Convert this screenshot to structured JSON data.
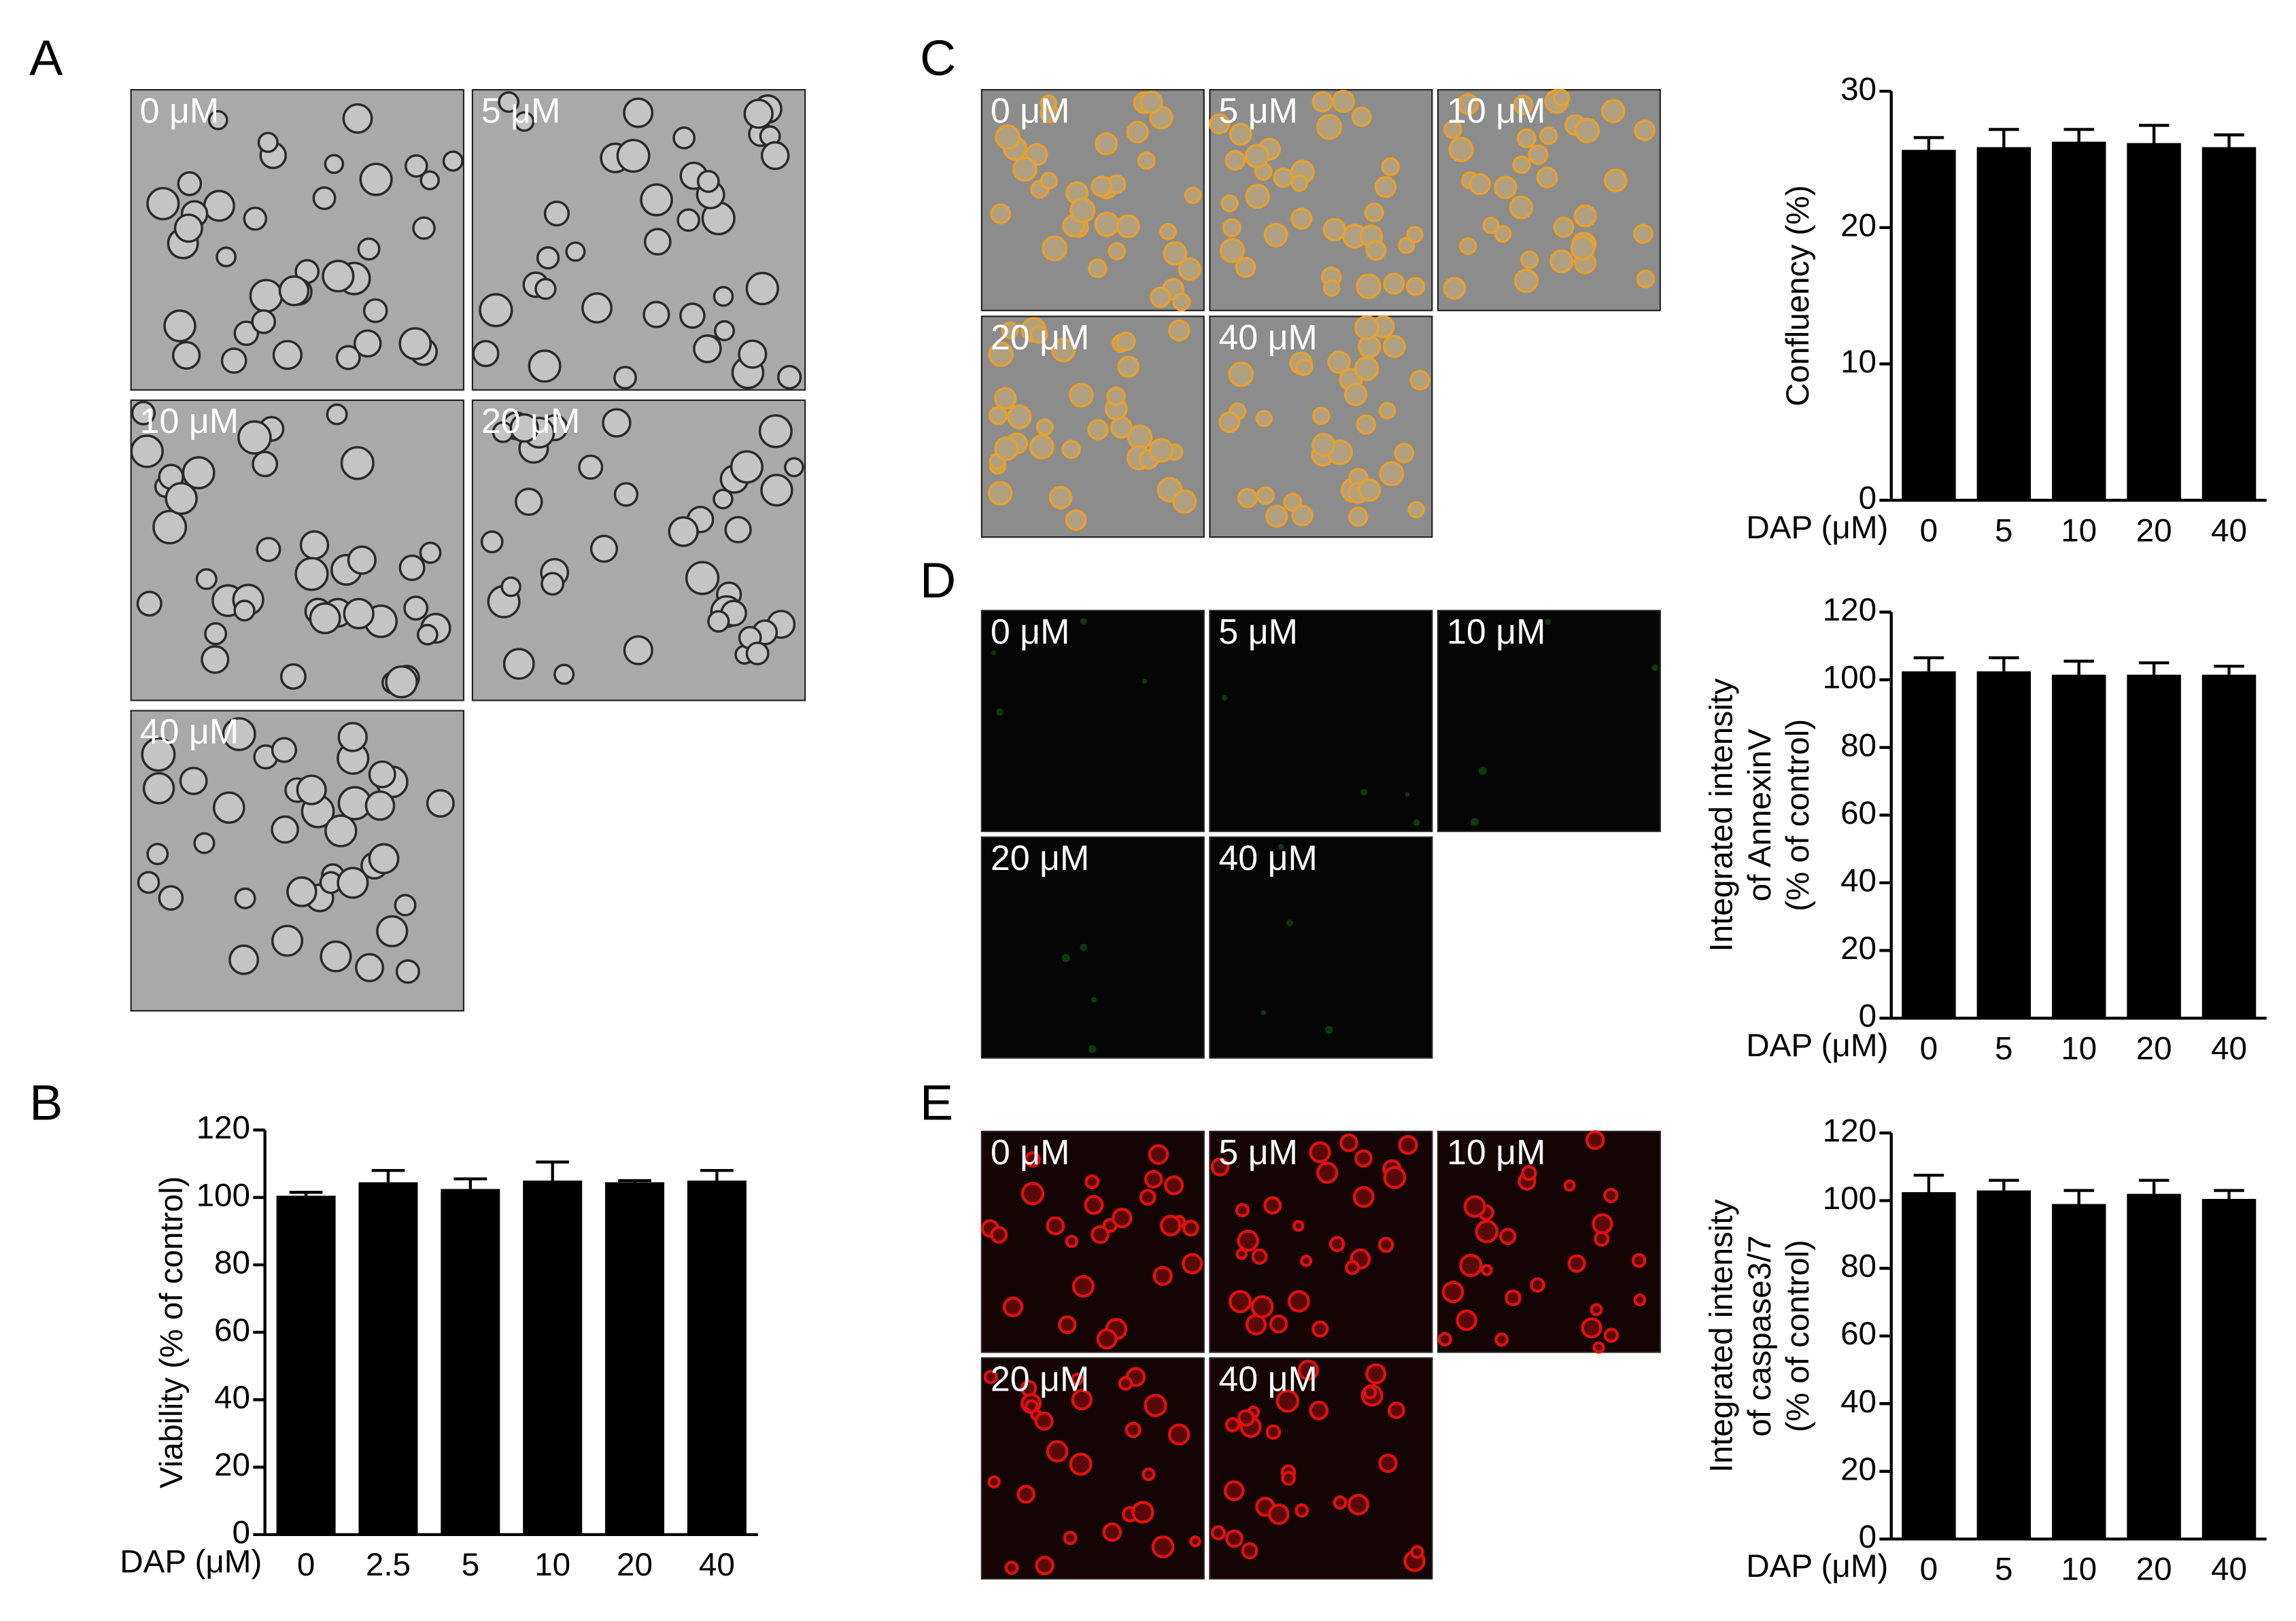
{
  "panel_labels": [
    "A",
    "B",
    "C",
    "D",
    "E"
  ],
  "micrographs": {
    "A": [
      "0 μM",
      "5 μM",
      "10 μM",
      "20 μM",
      "40 μM"
    ],
    "C": [
      "0 μM",
      "5 μM",
      "10 μM",
      "20 μM",
      "40 μM"
    ],
    "D": [
      "0 μM",
      "5 μM",
      "10 μM",
      "20 μM",
      "40 μM"
    ],
    "E": [
      "0 μM",
      "5 μM",
      "10 μM",
      "20 μM",
      "40 μM"
    ]
  },
  "chart_data": [
    {
      "type": "bar",
      "xlabel": "DAP (μM)",
      "ylabel": [
        "Viability (% of control)"
      ],
      "categories": [
        "0",
        "2.5",
        "5",
        "10",
        "20",
        "40"
      ],
      "values": [
        100.5,
        104.5,
        102.5,
        105,
        104.5,
        105
      ],
      "errors": [
        1,
        3.5,
        3,
        5.5,
        0.5,
        3
      ],
      "color": "#000000",
      "ylim": [
        0,
        120
      ],
      "yticks": [
        0,
        20,
        40,
        60,
        80,
        100,
        120
      ]
    },
    {
      "type": "bar",
      "xlabel": "DAP (μM)",
      "ylabel": [
        "Confluency (%)"
      ],
      "categories": [
        "0",
        "5",
        "10",
        "20",
        "40"
      ],
      "values": [
        25.7,
        25.9,
        26.3,
        26.2,
        25.9
      ],
      "errors": [
        0.9,
        1.3,
        0.9,
        1.3,
        0.9
      ],
      "color": "#000000",
      "ylim": [
        0,
        30
      ],
      "yticks": [
        0,
        10,
        20,
        30
      ]
    },
    {
      "type": "bar",
      "xlabel": "DAP (μM)",
      "ylabel": [
        "Integrated intensity",
        "of AnnexinV",
        "(% of control)"
      ],
      "categories": [
        "0",
        "5",
        "10",
        "20",
        "40"
      ],
      "values": [
        102.5,
        102.5,
        101.5,
        101.5,
        101.5
      ],
      "errors": [
        4,
        4,
        4,
        3.5,
        2.5
      ],
      "color": "#000000",
      "ylim": [
        0,
        120
      ],
      "yticks": [
        0,
        20,
        40,
        60,
        80,
        100,
        120
      ]
    },
    {
      "type": "bar",
      "xlabel": "DAP (μM)",
      "ylabel": [
        "Integrated intensity",
        "of caspase3/7",
        "(% of control)"
      ],
      "categories": [
        "0",
        "5",
        "10",
        "20",
        "40"
      ],
      "values": [
        102.5,
        103,
        99,
        102,
        100.5
      ],
      "errors": [
        5,
        3,
        4,
        4,
        2.5
      ],
      "color": "#000000",
      "ylim": [
        0,
        120
      ],
      "yticks": [
        0,
        20,
        40,
        60,
        80,
        100,
        120
      ]
    }
  ]
}
